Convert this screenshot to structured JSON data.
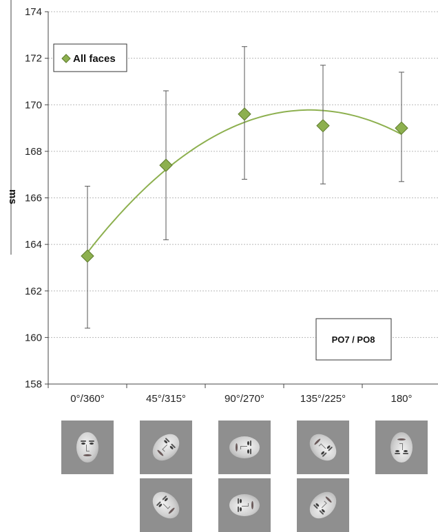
{
  "chart_data": {
    "type": "scatter",
    "ylabel": "ms",
    "ylim": [
      158,
      174
    ],
    "yticks": [
      "158",
      "160",
      "162",
      "164",
      "166",
      "168",
      "170",
      "172",
      "174"
    ],
    "categories": [
      "0°/360°",
      "45°/315°",
      "90°/270°",
      "135°/225°",
      "180°"
    ],
    "series": [
      {
        "name": "All faces",
        "marker": "diamond",
        "color": "#8db04f",
        "values": [
          163.5,
          167.4,
          169.6,
          169.1,
          169.0
        ],
        "error_upper": [
          166.5,
          170.6,
          172.5,
          171.7,
          171.4
        ],
        "error_lower": [
          160.4,
          164.2,
          166.8,
          166.6,
          166.7
        ]
      }
    ],
    "trendline": {
      "type": "polynomial",
      "color": "#8db04f"
    },
    "grid": true,
    "legend": {
      "position": "top-left"
    },
    "annotation": "PO7 / PO8"
  },
  "stimulus_rows": [
    [
      "upright",
      "rot-45",
      "rot-90",
      "rot-135",
      "rot-180"
    ],
    [
      "",
      "rot-315",
      "rot-270",
      "rot-225",
      ""
    ]
  ],
  "colors": {
    "marker": "#8db04f",
    "marker_edge": "#5d7a2c",
    "grid": "#b8b8b8",
    "stimulus_bg": "#8f8f8f"
  }
}
